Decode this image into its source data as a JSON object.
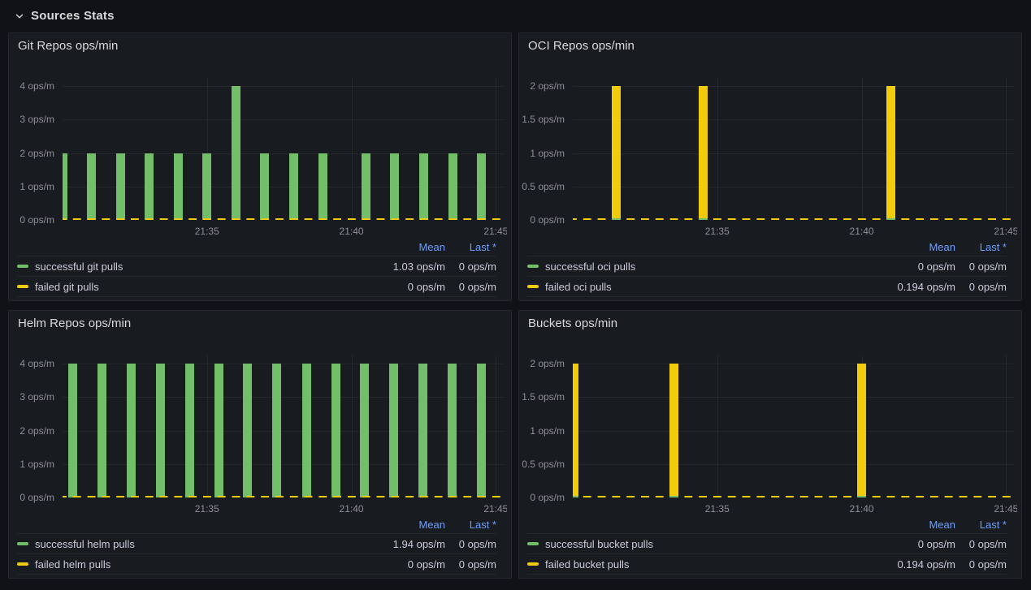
{
  "section": {
    "title": "Sources Stats"
  },
  "legend_columns": {
    "mean": "Mean",
    "last": "Last *"
  },
  "colors": {
    "green": "#73BF69",
    "yellow": "#F2CC0C",
    "link_blue": "#6E9FFF",
    "panel_bg": "#181B1F",
    "page_bg": "#111217"
  },
  "panels": [
    {
      "id": "git-repos",
      "title": "Git Repos ops/min",
      "chart_data": {
        "type": "bar",
        "unit": "ops/m",
        "y_max": 4,
        "y_ticks": [
          {
            "value": 4,
            "label": "4 ops/m"
          },
          {
            "value": 3,
            "label": "3 ops/m"
          },
          {
            "value": 2,
            "label": "2 ops/m"
          },
          {
            "value": 1,
            "label": "1 ops/m"
          },
          {
            "value": 0,
            "label": "0 ops/m"
          }
        ],
        "x_domain_minutes": 15.3,
        "x_ticks": [
          {
            "minute": 5,
            "label": "21:35"
          },
          {
            "minute": 10,
            "label": "21:40"
          },
          {
            "minute": 15,
            "label": "21:45"
          }
        ],
        "bars": {
          "color": "green",
          "series": "successful git pulls",
          "points": [
            {
              "minute": 0,
              "value": 2
            },
            {
              "minute": 1,
              "value": 2
            },
            {
              "minute": 2,
              "value": 2
            },
            {
              "minute": 3,
              "value": 2
            },
            {
              "minute": 4,
              "value": 2
            },
            {
              "minute": 5,
              "value": 2
            },
            {
              "minute": 6,
              "value": 4
            },
            {
              "minute": 7,
              "value": 2
            },
            {
              "minute": 8,
              "value": 2
            },
            {
              "minute": 9,
              "value": 2
            },
            {
              "minute": 10.5,
              "value": 2
            },
            {
              "minute": 11.5,
              "value": 2
            },
            {
              "minute": 12.5,
              "value": 2
            },
            {
              "minute": 13.5,
              "value": 2
            },
            {
              "minute": 14.5,
              "value": 2
            }
          ]
        },
        "zero_line": {
          "color": "yellow",
          "series": "failed git pulls",
          "on_top_of_bars": true,
          "marks": []
        }
      },
      "legend": [
        {
          "label": "successful git pulls",
          "color": "green",
          "mean": "1.03 ops/m",
          "last": "0 ops/m"
        },
        {
          "label": "failed git pulls",
          "color": "yellow",
          "mean": "0 ops/m",
          "last": "0 ops/m"
        }
      ]
    },
    {
      "id": "oci-repos",
      "title": "OCI Repos ops/min",
      "chart_data": {
        "type": "bar",
        "unit": "ops/m",
        "y_max": 2,
        "y_ticks": [
          {
            "value": 2,
            "label": "2 ops/m"
          },
          {
            "value": 1.5,
            "label": "1.5 ops/m"
          },
          {
            "value": 1,
            "label": "1 ops/m"
          },
          {
            "value": 0.5,
            "label": "0.5 ops/m"
          },
          {
            "value": 0,
            "label": "0 ops/m"
          }
        ],
        "x_domain_minutes": 15.3,
        "x_ticks": [
          {
            "minute": 5,
            "label": "21:35"
          },
          {
            "minute": 10,
            "label": "21:40"
          },
          {
            "minute": 15,
            "label": "21:45"
          }
        ],
        "bars": {
          "color": "yellow",
          "series": "failed oci pulls",
          "points": [
            {
              "minute": 1.5,
              "value": 2
            },
            {
              "minute": 4.5,
              "value": 2
            },
            {
              "minute": 11,
              "value": 2
            }
          ]
        },
        "zero_line": {
          "color": "yellow",
          "series": "failed oci pulls",
          "on_top_of_bars": false,
          "marks": [
            {
              "minute": 1.5,
              "color": "green"
            },
            {
              "minute": 4.5,
              "color": "green"
            },
            {
              "minute": 11,
              "color": "green"
            }
          ]
        }
      },
      "legend": [
        {
          "label": "successful oci pulls",
          "color": "green",
          "mean": "0 ops/m",
          "last": "0 ops/m"
        },
        {
          "label": "failed oci pulls",
          "color": "yellow",
          "mean": "0.194 ops/m",
          "last": "0 ops/m"
        }
      ]
    },
    {
      "id": "helm-repos",
      "title": "Helm Repos ops/min",
      "chart_data": {
        "type": "bar",
        "unit": "ops/m",
        "y_max": 4,
        "y_ticks": [
          {
            "value": 4,
            "label": "4 ops/m"
          },
          {
            "value": 3,
            "label": "3 ops/m"
          },
          {
            "value": 2,
            "label": "2 ops/m"
          },
          {
            "value": 1,
            "label": "1 ops/m"
          },
          {
            "value": 0,
            "label": "0 ops/m"
          }
        ],
        "x_domain_minutes": 15.3,
        "x_ticks": [
          {
            "minute": 5,
            "label": "21:35"
          },
          {
            "minute": 10,
            "label": "21:40"
          },
          {
            "minute": 15,
            "label": "21:45"
          }
        ],
        "bars": {
          "color": "green",
          "series": "successful helm pulls",
          "points": [
            {
              "minute": 0.35,
              "value": 4
            },
            {
              "minute": 1.36,
              "value": 4
            },
            {
              "minute": 2.37,
              "value": 4
            },
            {
              "minute": 3.38,
              "value": 4
            },
            {
              "minute": 4.39,
              "value": 4
            },
            {
              "minute": 5.4,
              "value": 4
            },
            {
              "minute": 6.41,
              "value": 4
            },
            {
              "minute": 7.42,
              "value": 4
            },
            {
              "minute": 8.44,
              "value": 4
            },
            {
              "minute": 9.45,
              "value": 4
            },
            {
              "minute": 10.46,
              "value": 4
            },
            {
              "minute": 11.47,
              "value": 4
            },
            {
              "minute": 12.48,
              "value": 4
            },
            {
              "minute": 13.49,
              "value": 4
            },
            {
              "minute": 14.5,
              "value": 4
            }
          ]
        },
        "zero_line": {
          "color": "yellow",
          "series": "failed helm pulls",
          "on_top_of_bars": true,
          "marks": []
        }
      },
      "legend": [
        {
          "label": "successful helm pulls",
          "color": "green",
          "mean": "1.94 ops/m",
          "last": "0 ops/m"
        },
        {
          "label": "failed helm pulls",
          "color": "yellow",
          "mean": "0 ops/m",
          "last": "0 ops/m"
        }
      ]
    },
    {
      "id": "buckets",
      "title": "Buckets ops/min",
      "chart_data": {
        "type": "bar",
        "unit": "ops/m",
        "y_max": 2,
        "y_ticks": [
          {
            "value": 2,
            "label": "2 ops/m"
          },
          {
            "value": 1.5,
            "label": "1.5 ops/m"
          },
          {
            "value": 1,
            "label": "1 ops/m"
          },
          {
            "value": 0.5,
            "label": "0.5 ops/m"
          },
          {
            "value": 0,
            "label": "0 ops/m"
          }
        ],
        "x_domain_minutes": 15.3,
        "x_ticks": [
          {
            "minute": 5,
            "label": "21:35"
          },
          {
            "minute": 10,
            "label": "21:40"
          },
          {
            "minute": 15,
            "label": "21:45"
          }
        ],
        "bars": {
          "color": "yellow",
          "series": "failed bucket pulls",
          "points": [
            {
              "minute": 0.05,
              "value": 2
            },
            {
              "minute": 3.5,
              "value": 2
            },
            {
              "minute": 10,
              "value": 2
            }
          ]
        },
        "zero_line": {
          "color": "yellow",
          "series": "failed bucket pulls",
          "on_top_of_bars": false,
          "marks": [
            {
              "minute": 0.05,
              "color": "green"
            },
            {
              "minute": 3.5,
              "color": "green"
            },
            {
              "minute": 10,
              "color": "green"
            }
          ]
        }
      },
      "legend": [
        {
          "label": "successful bucket pulls",
          "color": "green",
          "mean": "0 ops/m",
          "last": "0 ops/m"
        },
        {
          "label": "failed bucket pulls",
          "color": "yellow",
          "mean": "0.194 ops/m",
          "last": "0 ops/m"
        }
      ]
    }
  ]
}
